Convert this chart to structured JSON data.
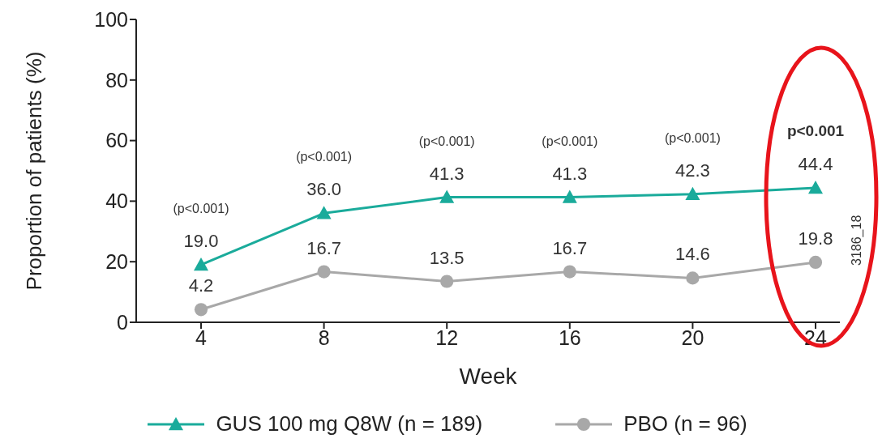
{
  "chart_data": {
    "type": "line",
    "xlabel": "Week",
    "ylabel": "Proportion of patients (%)",
    "categories": [
      "4",
      "8",
      "12",
      "16",
      "20",
      "24"
    ],
    "series": [
      {
        "name": "GUS 100 mg Q8W (n = 189)",
        "color": "#1aab9b",
        "marker": "triangle",
        "values": [
          19.0,
          36.0,
          41.3,
          41.3,
          42.3,
          44.4
        ],
        "value_labels": [
          "19.0",
          "36.0",
          "41.3",
          "41.3",
          "42.3",
          "44.4"
        ]
      },
      {
        "name": "PBO (n = 96)",
        "color": "#a8a8a8",
        "marker": "circle",
        "values": [
          4.2,
          16.7,
          13.5,
          16.7,
          14.6,
          19.8
        ],
        "value_labels": [
          "4.2",
          "16.7",
          "13.5",
          "16.7",
          "14.6",
          "19.8"
        ]
      }
    ],
    "ylim": [
      0,
      100
    ],
    "yticks": [
      0,
      20,
      40,
      60,
      80,
      100
    ],
    "grid": false,
    "legend": "bottom",
    "annotations": [
      "(p<0.001)",
      "(p<0.001)",
      "(p<0.001)",
      "(p<0.001)",
      "(p<0.001)",
      "p<0.001",
      "3186_18"
    ]
  }
}
